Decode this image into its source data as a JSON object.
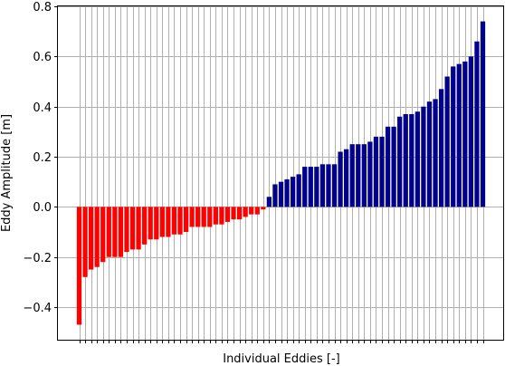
{
  "chart_data": {
    "type": "bar",
    "title": "",
    "xlabel": "Individual Eddies [-]",
    "ylabel": "Eddy Amplitude [m]",
    "ylim": [
      -0.53,
      0.8
    ],
    "yticks": [
      -0.4,
      -0.2,
      0.0,
      0.2,
      0.4,
      0.6,
      0.8
    ],
    "ytick_labels": [
      "−0.4",
      "−0.2",
      "0.0",
      "0.2",
      "0.4",
      "0.6",
      "0.8"
    ],
    "grid": true,
    "colors": {
      "negative": "#ff0000",
      "positive": "#00008b",
      "grid": "#b0b0b0"
    },
    "values": [
      -0.47,
      -0.28,
      -0.25,
      -0.24,
      -0.22,
      -0.2,
      -0.2,
      -0.2,
      -0.18,
      -0.17,
      -0.17,
      -0.15,
      -0.13,
      -0.13,
      -0.12,
      -0.12,
      -0.11,
      -0.11,
      -0.1,
      -0.08,
      -0.08,
      -0.08,
      -0.08,
      -0.07,
      -0.07,
      -0.06,
      -0.05,
      -0.05,
      -0.04,
      -0.03,
      -0.03,
      -0.01,
      0.04,
      0.09,
      0.1,
      0.11,
      0.12,
      0.13,
      0.16,
      0.16,
      0.16,
      0.17,
      0.17,
      0.17,
      0.22,
      0.23,
      0.25,
      0.25,
      0.25,
      0.26,
      0.28,
      0.28,
      0.32,
      0.32,
      0.36,
      0.37,
      0.37,
      0.38,
      0.4,
      0.42,
      0.43,
      0.47,
      0.52,
      0.56,
      0.57,
      0.58,
      0.6,
      0.66,
      0.74
    ]
  }
}
